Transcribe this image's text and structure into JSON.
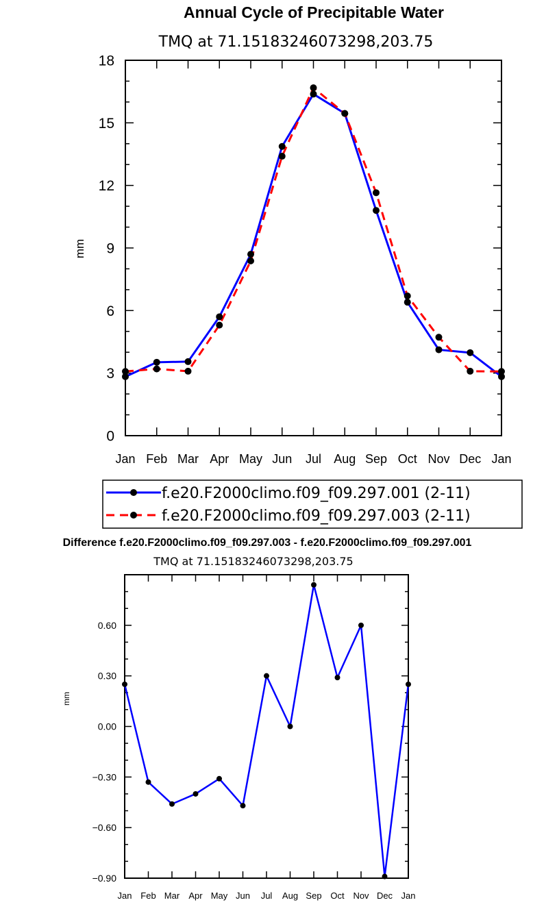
{
  "chart_data": [
    {
      "type": "line",
      "title": "Annual Cycle of Precipitable Water",
      "subtitle": "TMQ at 71.15183246073298,203.75",
      "xlabel": "",
      "ylabel": "mm",
      "categories": [
        "Jan",
        "Feb",
        "Mar",
        "Apr",
        "May",
        "Jun",
        "Jul",
        "Aug",
        "Sep",
        "Oct",
        "Nov",
        "Dec",
        "Jan"
      ],
      "ylim": [
        0,
        18
      ],
      "yticks": [
        0,
        3,
        6,
        9,
        12,
        15,
        18
      ],
      "ytick_labels": [
        "0",
        "3",
        "6",
        "9",
        "12",
        "15",
        "18"
      ],
      "grid": false,
      "legend_position": "bottom",
      "series": [
        {
          "name": "f.e20.F2000climo.f09_f09.297.001 (2-11)",
          "color": "#0000ff",
          "dash": "solid",
          "values": [
            2.83,
            3.52,
            3.55,
            5.7,
            8.7,
            13.87,
            16.38,
            15.45,
            10.8,
            6.4,
            4.12,
            3.98,
            2.83
          ]
        },
        {
          "name": "f.e20.F2000climo.f09_f09.297.003 (2-11)",
          "color": "#ff0000",
          "dash": "dashed",
          "values": [
            3.08,
            3.2,
            3.09,
            5.3,
            8.38,
            13.4,
            16.68,
            15.45,
            11.65,
            6.7,
            4.72,
            3.09,
            3.08
          ]
        }
      ]
    },
    {
      "type": "line",
      "title": "Difference f.e20.F2000climo.f09_f09.297.003 - f.e20.F2000climo.f09_f09.297.001",
      "subtitle": "TMQ at 71.15183246073298,203.75",
      "xlabel": "",
      "ylabel": "mm",
      "categories": [
        "Jan",
        "Feb",
        "Mar",
        "Apr",
        "May",
        "Jun",
        "Jul",
        "Aug",
        "Sep",
        "Oct",
        "Nov",
        "Dec",
        "Jan"
      ],
      "ylim": [
        -0.9,
        0.9
      ],
      "yticks": [
        -0.9,
        -0.6,
        -0.3,
        0.0,
        0.3,
        0.6
      ],
      "ytick_labels": [
        "-0.90",
        "-0.60",
        "-0.30",
        "0.00",
        "0.30",
        "0.60"
      ],
      "grid": false,
      "series": [
        {
          "name": "difference",
          "color": "#0000ff",
          "dash": "solid",
          "values": [
            0.25,
            -0.33,
            -0.46,
            -0.4,
            -0.31,
            -0.47,
            0.3,
            0.0,
            0.84,
            0.29,
            0.6,
            -0.89,
            0.25
          ]
        }
      ]
    }
  ]
}
